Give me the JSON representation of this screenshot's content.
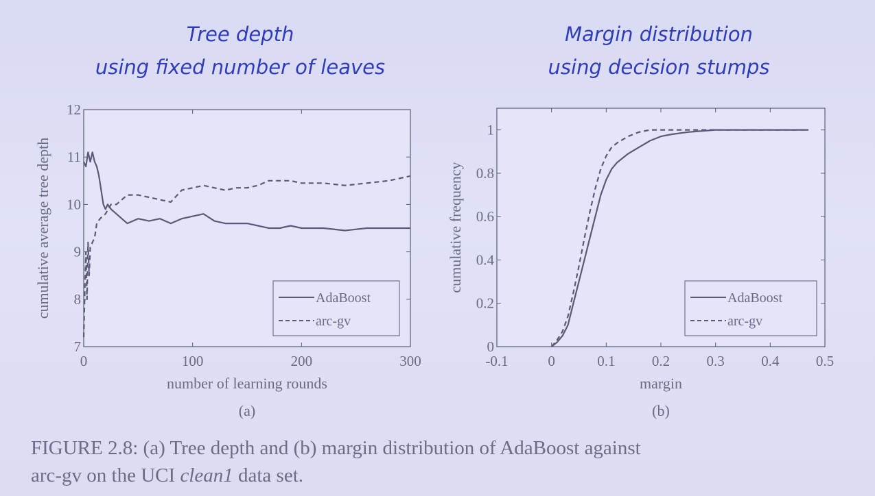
{
  "slide": {
    "left_title_line1": "Tree depth",
    "left_title_line2": "using fixed number of leaves",
    "right_title_line1": "Margin distribution",
    "right_title_line2": "using decision stumps"
  },
  "caption": {
    "part1": "FIGURE 2.8: (a) Tree depth and (b) margin distribution of AdaBoost against",
    "part2": "arc-gv on the UCI ",
    "italic": "clean1",
    "part3": " data set."
  },
  "colors": {
    "background": "#dcddf4",
    "title": "#2f3dbb",
    "ink": "#5a5a78"
  },
  "chart_data": [
    {
      "type": "line",
      "sub_label": "(a)",
      "title": "",
      "xlabel": "number of learning rounds",
      "ylabel": "cumulative average tree depth",
      "xlim": [
        0,
        300
      ],
      "ylim": [
        7,
        12
      ],
      "xticks": [
        0,
        100,
        200,
        300
      ],
      "yticks": [
        7,
        8,
        9,
        10,
        11,
        12
      ],
      "legend_position": "bottom-right",
      "grid": false,
      "series": [
        {
          "name": "AdaBoost",
          "style": "solid",
          "x": [
            0,
            2,
            4,
            6,
            8,
            10,
            12,
            14,
            16,
            18,
            20,
            22,
            25,
            30,
            35,
            40,
            50,
            60,
            70,
            80,
            90,
            100,
            110,
            120,
            130,
            140,
            150,
            160,
            170,
            180,
            190,
            200,
            220,
            240,
            260,
            280,
            300
          ],
          "y": [
            10.9,
            10.8,
            11.1,
            10.9,
            11.1,
            10.9,
            10.8,
            10.6,
            10.3,
            10.0,
            9.9,
            10.0,
            9.9,
            9.8,
            9.7,
            9.6,
            9.7,
            9.65,
            9.7,
            9.6,
            9.7,
            9.75,
            9.8,
            9.65,
            9.6,
            9.6,
            9.6,
            9.55,
            9.5,
            9.5,
            9.55,
            9.5,
            9.5,
            9.45,
            9.5,
            9.5,
            9.5
          ]
        },
        {
          "name": "arc-gv",
          "style": "dashed",
          "x": [
            0,
            1,
            2,
            3,
            4,
            5,
            6,
            8,
            10,
            12,
            15,
            20,
            25,
            30,
            35,
            40,
            50,
            60,
            70,
            80,
            90,
            100,
            110,
            120,
            130,
            140,
            150,
            160,
            170,
            180,
            190,
            200,
            220,
            240,
            260,
            280,
            300
          ],
          "y": [
            7.2,
            8.2,
            9.0,
            8.0,
            9.2,
            8.5,
            9.1,
            9.2,
            9.3,
            9.6,
            9.7,
            9.8,
            10.0,
            10.0,
            10.1,
            10.2,
            10.2,
            10.15,
            10.1,
            10.05,
            10.3,
            10.35,
            10.4,
            10.35,
            10.3,
            10.35,
            10.35,
            10.4,
            10.5,
            10.5,
            10.5,
            10.45,
            10.45,
            10.4,
            10.45,
            10.5,
            10.6
          ]
        }
      ]
    },
    {
      "type": "line",
      "sub_label": "(b)",
      "title": "",
      "xlabel": "margin",
      "ylabel": "cumulative frequency",
      "xlim": [
        -0.1,
        0.5
      ],
      "ylim": [
        0,
        1.1
      ],
      "xticks": [
        -0.1,
        0,
        0.1,
        0.2,
        0.3,
        0.4,
        0.5
      ],
      "xtick_labels": [
        "-0.1",
        "0",
        "0.1",
        "0.2",
        "0.3",
        "0.4",
        "0.5"
      ],
      "yticks": [
        0,
        0.2,
        0.4,
        0.6,
        0.8,
        1
      ],
      "legend_position": "bottom-right",
      "grid": false,
      "series": [
        {
          "name": "AdaBoost",
          "style": "solid",
          "x": [
            0.0,
            0.01,
            0.02,
            0.03,
            0.04,
            0.05,
            0.06,
            0.07,
            0.08,
            0.09,
            0.1,
            0.11,
            0.12,
            0.14,
            0.16,
            0.18,
            0.2,
            0.22,
            0.25,
            0.3,
            0.35,
            0.4,
            0.45,
            0.47
          ],
          "y": [
            0.0,
            0.02,
            0.05,
            0.1,
            0.2,
            0.3,
            0.4,
            0.5,
            0.6,
            0.7,
            0.77,
            0.82,
            0.85,
            0.89,
            0.92,
            0.95,
            0.97,
            0.98,
            0.99,
            1.0,
            1.0,
            1.0,
            1.0,
            1.0
          ]
        },
        {
          "name": "arc-gv",
          "style": "dashed",
          "x": [
            0.0,
            0.01,
            0.02,
            0.03,
            0.04,
            0.05,
            0.06,
            0.07,
            0.08,
            0.09,
            0.1,
            0.11,
            0.12,
            0.14,
            0.16,
            0.18,
            0.2,
            0.22,
            0.25,
            0.3,
            0.35,
            0.4,
            0.45,
            0.47
          ],
          "y": [
            0.0,
            0.03,
            0.07,
            0.14,
            0.25,
            0.37,
            0.5,
            0.62,
            0.73,
            0.82,
            0.88,
            0.92,
            0.94,
            0.97,
            0.99,
            1.0,
            1.0,
            1.0,
            1.0,
            1.0,
            1.0,
            1.0,
            1.0,
            1.0
          ]
        }
      ]
    }
  ]
}
